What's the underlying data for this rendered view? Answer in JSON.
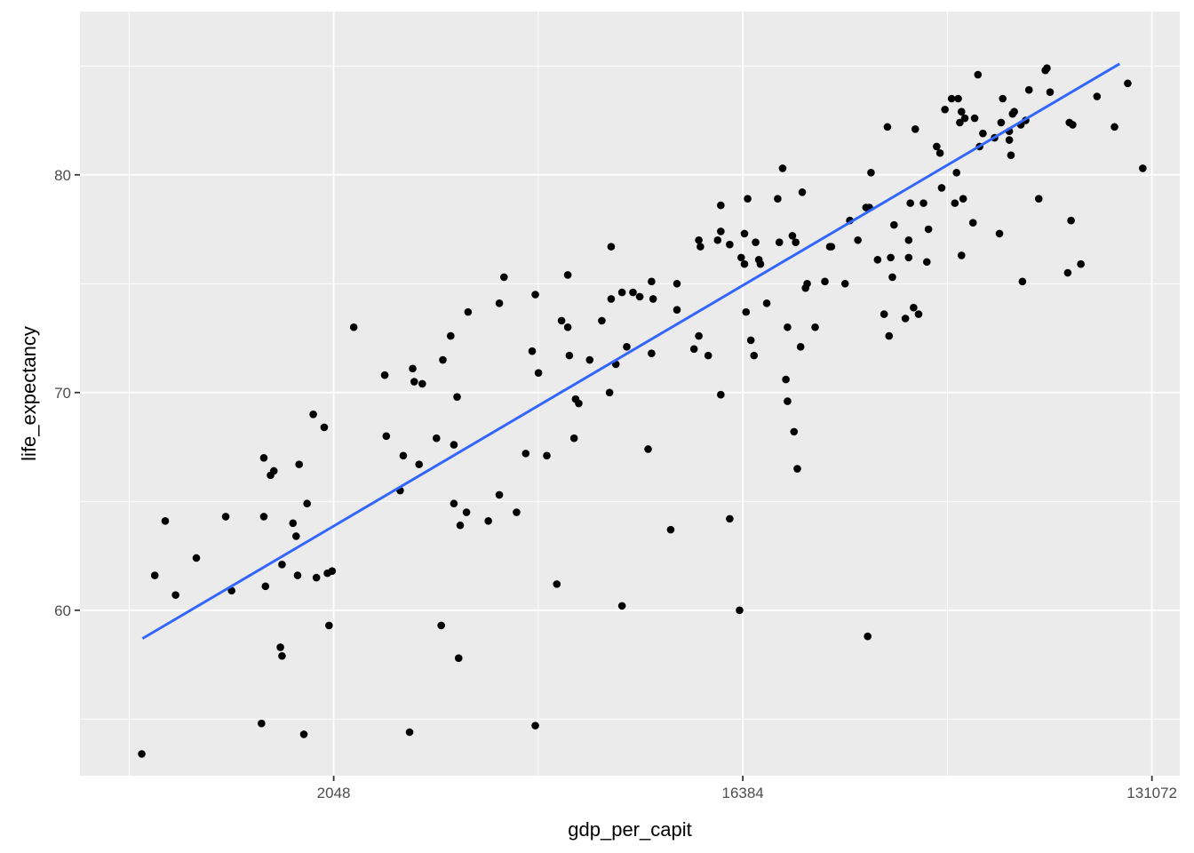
{
  "chart_data": {
    "type": "scatter",
    "title": "",
    "xlabel": "gdp_per_capit",
    "ylabel": "life_expectancy",
    "x_scale": "log2",
    "x_ticks": [
      2048,
      16384,
      131072
    ],
    "x_tick_labels": [
      "2048",
      "16384",
      "131072"
    ],
    "y_ticks": [
      60,
      70,
      80
    ],
    "y_tick_labels": [
      "60",
      "70",
      "80"
    ],
    "xlim": [
      564,
      151000
    ],
    "ylim": [
      52.4,
      87.5
    ],
    "grid": true,
    "legend": "none",
    "colors": {
      "panel_background": "#EBEBEB",
      "grid": "#FFFFFF",
      "points": "#000000",
      "trend_line": "#3366FF"
    },
    "trend_line": {
      "method": "lm",
      "x": [
        775,
        111200
      ],
      "y": [
        58.7,
        85.1
      ]
    },
    "points": [
      [
        772,
        53.4
      ],
      [
        825,
        61.6
      ],
      [
        870,
        64.1
      ],
      [
        917,
        60.7
      ],
      [
        1019,
        62.4
      ],
      [
        1183,
        64.3
      ],
      [
        1219,
        60.9
      ],
      [
        1419,
        54.8
      ],
      [
        1436,
        67.0
      ],
      [
        1436,
        64.3
      ],
      [
        1448,
        61.1
      ],
      [
        1486,
        66.2
      ],
      [
        1511,
        66.4
      ],
      [
        1562,
        58.3
      ],
      [
        1575,
        62.1
      ],
      [
        1575,
        57.9
      ],
      [
        1665,
        64.0
      ],
      [
        1692,
        63.4
      ],
      [
        1705,
        61.6
      ],
      [
        1718,
        66.7
      ],
      [
        1760,
        54.3
      ],
      [
        1789,
        64.9
      ],
      [
        1846,
        69.0
      ],
      [
        1876,
        61.5
      ],
      [
        1952,
        68.4
      ],
      [
        1984,
        61.7
      ],
      [
        2000,
        59.3
      ],
      [
        2032,
        61.8
      ],
      [
        2268,
        73.0
      ],
      [
        2655,
        70.8
      ],
      [
        2676,
        68.0
      ],
      [
        2871,
        65.5
      ],
      [
        2917,
        67.1
      ],
      [
        3012,
        54.4
      ],
      [
        3060,
        71.1
      ],
      [
        3084,
        70.5
      ],
      [
        3161,
        66.7
      ],
      [
        3213,
        70.4
      ],
      [
        3453,
        67.9
      ],
      [
        3538,
        59.3
      ],
      [
        3567,
        71.5
      ],
      [
        3712,
        72.6
      ],
      [
        3773,
        67.6
      ],
      [
        3773,
        64.9
      ],
      [
        3835,
        69.8
      ],
      [
        3865,
        57.8
      ],
      [
        3896,
        63.9
      ],
      [
        4022,
        64.5
      ],
      [
        4055,
        73.7
      ],
      [
        4494,
        64.1
      ],
      [
        4753,
        65.3
      ],
      [
        4753,
        74.1
      ],
      [
        4867,
        75.3
      ],
      [
        5188,
        64.5
      ],
      [
        5436,
        67.2
      ],
      [
        5616,
        71.9
      ],
      [
        5707,
        54.7
      ],
      [
        5707,
        74.5
      ],
      [
        5799,
        70.9
      ],
      [
        6050,
        67.1
      ],
      [
        6366,
        61.2
      ],
      [
        6521,
        73.3
      ],
      [
        6731,
        75.4
      ],
      [
        6731,
        73.0
      ],
      [
        6785,
        71.7
      ],
      [
        6949,
        67.9
      ],
      [
        7003,
        69.7
      ],
      [
        7117,
        69.5
      ],
      [
        7524,
        71.5
      ],
      [
        8002,
        73.3
      ],
      [
        8323,
        70.0
      ],
      [
        8391,
        74.3
      ],
      [
        8391,
        76.7
      ],
      [
        8592,
        71.3
      ],
      [
        8867,
        60.2
      ],
      [
        8867,
        74.6
      ],
      [
        9082,
        72.1
      ],
      [
        9376,
        74.6
      ],
      [
        9703,
        74.4
      ],
      [
        10125,
        67.4
      ],
      [
        10303,
        71.8
      ],
      [
        10303,
        75.1
      ],
      [
        10386,
        74.3
      ],
      [
        11356,
        63.7
      ],
      [
        11724,
        73.8
      ],
      [
        11724,
        75.0
      ],
      [
        12785,
        72.0
      ],
      [
        13101,
        77.0
      ],
      [
        13101,
        72.6
      ],
      [
        13207,
        76.7
      ],
      [
        13743,
        71.7
      ],
      [
        14417,
        77.0
      ],
      [
        14650,
        69.9
      ],
      [
        14650,
        77.4
      ],
      [
        14650,
        78.6
      ],
      [
        15329,
        64.2
      ],
      [
        15329,
        76.8
      ],
      [
        16117,
        60.0
      ],
      [
        16249,
        76.2
      ],
      [
        16522,
        75.9
      ],
      [
        16522,
        77.3
      ],
      [
        16656,
        73.7
      ],
      [
        16792,
        78.9
      ],
      [
        17068,
        72.4
      ],
      [
        17347,
        71.7
      ],
      [
        17487,
        76.9
      ],
      [
        17775,
        76.1
      ],
      [
        17919,
        75.9
      ],
      [
        18503,
        74.1
      ],
      [
        19564,
        78.9
      ],
      [
        19727,
        76.9
      ],
      [
        20058,
        80.3
      ],
      [
        20394,
        70.6
      ],
      [
        20563,
        69.6
      ],
      [
        20563,
        73.0
      ],
      [
        21081,
        77.2
      ],
      [
        21258,
        68.2
      ],
      [
        21436,
        76.9
      ],
      [
        21615,
        66.5
      ],
      [
        21978,
        72.1
      ],
      [
        22162,
        79.2
      ],
      [
        22534,
        74.8
      ],
      [
        22722,
        75.0
      ],
      [
        23664,
        73.0
      ],
      [
        24866,
        75.1
      ],
      [
        25491,
        76.7
      ],
      [
        25705,
        76.7
      ],
      [
        27553,
        75.0
      ],
      [
        28226,
        77.9
      ],
      [
        29406,
        77.0
      ],
      [
        30649,
        78.5
      ],
      [
        30909,
        58.8
      ],
      [
        31171,
        78.5
      ],
      [
        31433,
        80.1
      ],
      [
        32504,
        76.1
      ],
      [
        33600,
        73.6
      ],
      [
        34172,
        82.2
      ],
      [
        34458,
        72.6
      ],
      [
        34746,
        76.2
      ],
      [
        35039,
        75.3
      ],
      [
        35334,
        77.7
      ],
      [
        37433,
        73.4
      ],
      [
        38066,
        77.0
      ],
      [
        38066,
        76.2
      ],
      [
        38385,
        78.7
      ],
      [
        39032,
        73.9
      ],
      [
        39364,
        82.1
      ],
      [
        40030,
        73.6
      ],
      [
        41048,
        78.7
      ],
      [
        41748,
        76.0
      ],
      [
        42097,
        77.5
      ],
      [
        43889,
        81.3
      ],
      [
        44640,
        81.0
      ],
      [
        45011,
        79.4
      ],
      [
        45768,
        83.0
      ],
      [
        47342,
        83.5
      ],
      [
        48141,
        78.7
      ],
      [
        48550,
        80.1
      ],
      [
        48963,
        83.5
      ],
      [
        49374,
        82.4
      ],
      [
        49790,
        76.3
      ],
      [
        49790,
        82.9
      ],
      [
        50210,
        78.9
      ],
      [
        50632,
        82.6
      ],
      [
        52782,
        77.8
      ],
      [
        53226,
        82.6
      ],
      [
        54131,
        84.6
      ],
      [
        54587,
        81.3
      ],
      [
        55509,
        81.9
      ],
      [
        58893,
        81.7
      ],
      [
        60391,
        77.3
      ],
      [
        60898,
        82.4
      ],
      [
        61408,
        83.5
      ],
      [
        63485,
        81.6
      ],
      [
        63485,
        82.0
      ],
      [
        64017,
        80.9
      ],
      [
        64554,
        82.8
      ],
      [
        65094,
        82.9
      ],
      [
        67313,
        82.3
      ],
      [
        67860,
        75.1
      ],
      [
        68992,
        82.5
      ],
      [
        70152,
        83.9
      ],
      [
        73744,
        78.9
      ],
      [
        76240,
        84.8
      ],
      [
        76862,
        84.9
      ],
      [
        78099,
        83.8
      ],
      [
        85440,
        75.5
      ],
      [
        86160,
        82.4
      ],
      [
        86887,
        77.9
      ],
      [
        87613,
        82.3
      ],
      [
        91332,
        75.9
      ],
      [
        99139,
        83.6
      ],
      [
        108375,
        82.2
      ],
      [
        115904,
        84.2
      ],
      [
        125096,
        80.3
      ]
    ]
  }
}
